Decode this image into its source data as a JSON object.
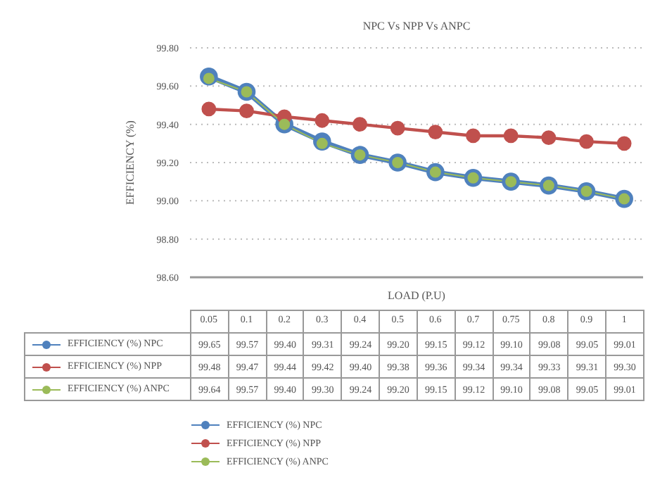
{
  "chart_data": {
    "type": "line",
    "title": "NPC Vs NPP Vs ANPC",
    "xlabel": "LOAD (P.U)",
    "ylabel": "EFFICIENCY (%)",
    "categories": [
      "0.05",
      "0.1",
      "0.2",
      "0.3",
      "0.4",
      "0.5",
      "0.6",
      "0.7",
      "0.75",
      "0.8",
      "0.9",
      "1"
    ],
    "series": [
      {
        "name": "EFFICIENCY (%) NPC",
        "color": "#4f81bd",
        "values": [
          99.65,
          99.57,
          99.4,
          99.31,
          99.24,
          99.2,
          99.15,
          99.12,
          99.1,
          99.08,
          99.05,
          99.01
        ],
        "value_labels": [
          "99.65",
          "99.57",
          "99.40",
          "99.31",
          "99.24",
          "99.20",
          "99.15",
          "99.12",
          "99.10",
          "99.08",
          "99.05",
          "99.01"
        ]
      },
      {
        "name": "EFFICIENCY (%) NPP",
        "color": "#c0504d",
        "values": [
          99.48,
          99.47,
          99.44,
          99.42,
          99.4,
          99.38,
          99.36,
          99.34,
          99.34,
          99.33,
          99.31,
          99.3
        ],
        "value_labels": [
          "99.48",
          "99.47",
          "99.44",
          "99.42",
          "99.40",
          "99.38",
          "99.36",
          "99.34",
          "99.34",
          "99.33",
          "99.31",
          "99.30"
        ]
      },
      {
        "name": "EFFICIENCY (%) ANPC",
        "color": "#9bbb59",
        "values": [
          99.64,
          99.57,
          99.4,
          99.3,
          99.24,
          99.2,
          99.15,
          99.12,
          99.1,
          99.08,
          99.05,
          99.01
        ],
        "value_labels": [
          "99.64",
          "99.57",
          "99.40",
          "99.30",
          "99.24",
          "99.20",
          "99.15",
          "99.12",
          "99.10",
          "99.08",
          "99.05",
          "99.01"
        ]
      }
    ],
    "ylim": [
      98.6,
      99.8
    ],
    "yticks": [
      {
        "value": 98.6,
        "label": "98.60"
      },
      {
        "value": 98.8,
        "label": "98.80"
      },
      {
        "value": 99.0,
        "label": "99.00"
      },
      {
        "value": 99.2,
        "label": "99.20"
      },
      {
        "value": 99.4,
        "label": "99.40"
      },
      {
        "value": 99.6,
        "label": "99.60"
      },
      {
        "value": 99.8,
        "label": "99.80"
      }
    ],
    "grid": "y",
    "legend": "bottom",
    "marker": "circle",
    "data_labels": true
  }
}
